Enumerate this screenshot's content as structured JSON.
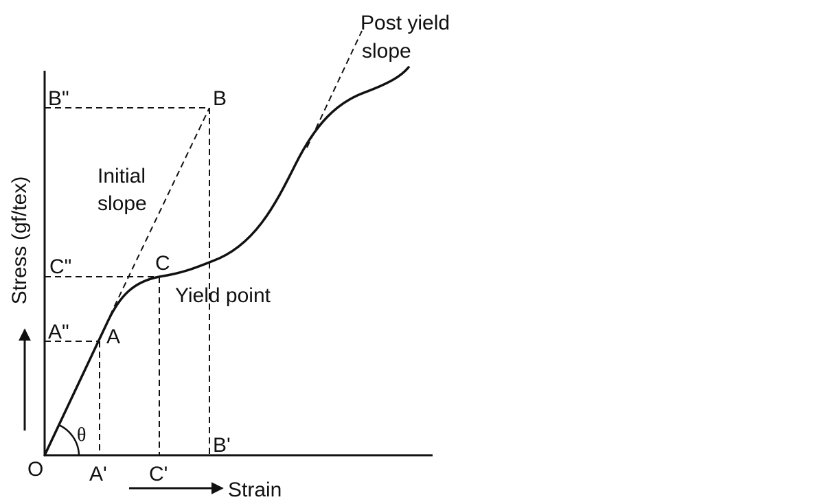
{
  "diagram": {
    "y_axis_label": "Stress (gf/tex)",
    "x_axis_label": "Strain",
    "origin_label": "O",
    "angle_label": "θ",
    "annotations": {
      "initial_slope": [
        "Initial",
        "slope"
      ],
      "post_yield_slope": [
        "Post yield",
        "slope"
      ],
      "yield_point": "Yield point"
    },
    "points": {
      "A": "A",
      "A_x": "A'",
      "A_y": "A\"",
      "B": "B",
      "B_x": "B'",
      "B_y": "B\"",
      "C": "C",
      "C_x": "C'",
      "C_y": "C\""
    }
  }
}
